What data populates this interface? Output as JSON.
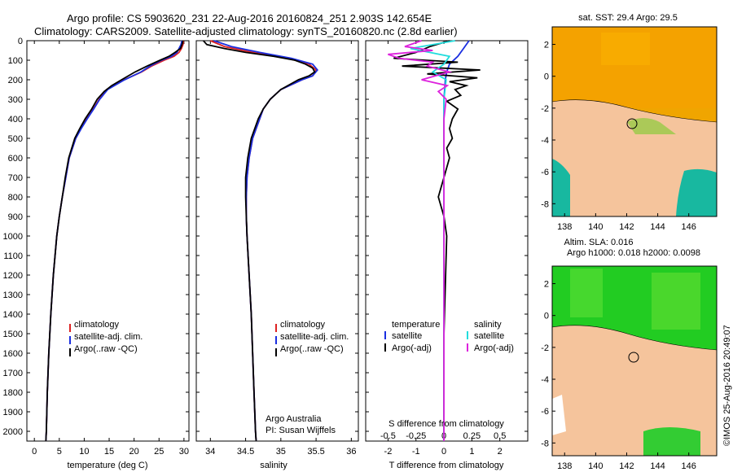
{
  "header": {
    "line1": "Argo profile: CS 5903620_231 22-Aug-2016 20160824_251 2.903S 142.654E",
    "line2": "Climatology: CARS2009. Satellite-adjusted climatology: synTS_20160820.nc (2.8d earlier)"
  },
  "colors": {
    "climatology": "#dd2222",
    "satellite": "#1a2ee0",
    "argo": "#000000",
    "sat_sal": "#22dddd",
    "argo_sal": "#dd22dd",
    "land": "#f5c49c",
    "ocean_warm": "#f0a500"
  },
  "depth_axis": {
    "ylim": [
      0,
      2050
    ],
    "ticks": [
      "0",
      "100",
      "200",
      "300",
      "400",
      "500",
      "600",
      "700",
      "800",
      "900",
      "1000",
      "1100",
      "1200",
      "1300",
      "1400",
      "1500",
      "1600",
      "1700",
      "1800",
      "1900",
      "2000"
    ]
  },
  "chart_data": [
    {
      "type": "line",
      "id": "temperature",
      "xlabel": "temperature (deg C)",
      "xlim": [
        -1.5,
        31
      ],
      "xticks": [
        "0",
        "5",
        "10",
        "15",
        "20",
        "25",
        "30"
      ],
      "legend": [
        "climatology",
        "satellite-adj. clim.",
        "Argo(..raw -QC)"
      ],
      "series": [
        {
          "name": "climatology",
          "depth": [
            0,
            20,
            40,
            60,
            80,
            100,
            130,
            160,
            200,
            250,
            300,
            350,
            400,
            450,
            500,
            600,
            700,
            800,
            900,
            1000,
            1200,
            1400,
            1600,
            1800,
            2000,
            2050
          ],
          "values": [
            29.9,
            29.8,
            29.5,
            29.0,
            28.0,
            26.0,
            23.5,
            21.5,
            18.0,
            14.5,
            13.0,
            11.8,
            10.5,
            9.3,
            8.3,
            7.0,
            6.3,
            5.6,
            5.0,
            4.5,
            3.8,
            3.3,
            2.9,
            2.6,
            2.4,
            2.3
          ]
        },
        {
          "name": "satellite-adj. clim.",
          "depth": [
            0,
            20,
            40,
            60,
            80,
            100,
            130,
            160,
            200,
            250,
            300,
            350,
            400,
            450,
            500,
            600,
            700,
            800,
            900,
            1000,
            1200,
            1400,
            1600,
            1800,
            2000,
            2050
          ],
          "values": [
            29.6,
            29.4,
            29.0,
            28.6,
            27.5,
            25.5,
            23.2,
            21.4,
            18.1,
            14.7,
            13.1,
            11.9,
            10.6,
            9.4,
            8.3,
            7.0,
            6.3,
            5.6,
            5.0,
            4.5,
            3.8,
            3.3,
            2.9,
            2.6,
            2.4,
            2.3
          ]
        },
        {
          "name": "Argo(..raw -QC)",
          "depth": [
            0,
            20,
            40,
            60,
            80,
            100,
            130,
            160,
            200,
            230,
            260,
            300,
            350,
            400,
            450,
            500,
            600,
            700,
            800,
            900,
            1000,
            1200,
            1400,
            1600,
            1800,
            2000,
            2050
          ],
          "values": [
            29.8,
            29.6,
            29.3,
            28.2,
            27.0,
            25.2,
            22.6,
            20.2,
            17.5,
            15.5,
            14.0,
            12.6,
            11.5,
            10.2,
            9.1,
            8.1,
            6.9,
            6.2,
            5.6,
            5.0,
            4.5,
            3.8,
            3.3,
            2.9,
            2.6,
            2.4,
            2.3
          ]
        }
      ]
    },
    {
      "type": "line",
      "id": "salinity",
      "xlabel": "salinity",
      "xlim": [
        33.8,
        36.1
      ],
      "xticks": [
        "34",
        "34.5",
        "35",
        "35.5",
        "36"
      ],
      "legend": [
        "climatology",
        "satellite-adj. clim.",
        "Argo(..raw -QC)"
      ],
      "annotation": [
        "Argo Australia",
        "PI: Susan Wijffels"
      ],
      "series": [
        {
          "name": "climatology",
          "depth": [
            0,
            30,
            60,
            90,
            120,
            150,
            180,
            200,
            250,
            300,
            350,
            400,
            500,
            600,
            700,
            800,
            900,
            1000,
            1200,
            1400,
            1600,
            1800,
            2000,
            2050
          ],
          "values": [
            34.0,
            34.2,
            34.6,
            35.1,
            35.4,
            35.5,
            35.45,
            35.3,
            35.0,
            34.85,
            34.75,
            34.7,
            34.6,
            34.55,
            34.52,
            34.51,
            34.51,
            34.52,
            34.55,
            34.58,
            34.6,
            34.62,
            34.64,
            34.65
          ]
        },
        {
          "name": "satellite-adj. clim.",
          "depth": [
            0,
            30,
            60,
            90,
            120,
            150,
            180,
            200,
            250,
            300,
            350,
            400,
            500,
            600,
            700,
            800,
            900,
            1000,
            1200,
            1400,
            1600,
            1800,
            2000,
            2050
          ],
          "values": [
            34.05,
            34.3,
            34.7,
            35.15,
            35.45,
            35.52,
            35.45,
            35.3,
            35.0,
            34.85,
            34.75,
            34.7,
            34.6,
            34.55,
            34.52,
            34.51,
            34.51,
            34.52,
            34.55,
            34.58,
            34.6,
            34.62,
            34.64,
            34.65
          ]
        },
        {
          "name": "Argo(..raw -QC)",
          "depth": [
            0,
            20,
            40,
            60,
            80,
            100,
            120,
            140,
            160,
            180,
            200,
            250,
            300,
            350,
            400,
            500,
            600,
            700,
            800,
            900,
            1000,
            1200,
            1400,
            1600,
            1800,
            2000,
            2050
          ],
          "values": [
            33.9,
            33.95,
            34.2,
            34.5,
            34.9,
            35.2,
            35.35,
            35.45,
            35.48,
            35.4,
            35.25,
            35.0,
            34.85,
            34.75,
            34.68,
            34.58,
            34.53,
            34.5,
            34.5,
            34.51,
            34.52,
            34.55,
            34.58,
            34.6,
            34.62,
            34.64,
            34.65
          ]
        }
      ]
    },
    {
      "type": "line",
      "id": "difference",
      "xlabel": "T difference from climatology",
      "xlabel_top": "S difference from climatology",
      "xlim": [
        -2.8,
        3.0
      ],
      "xticks": [
        "-2",
        "-1",
        "0",
        "1",
        "2"
      ],
      "s_ticks": [
        "-0.5",
        "-0.25",
        "0",
        "0.25",
        "0.5"
      ],
      "legend_titles": [
        "temperature",
        "salinity"
      ],
      "legend": [
        "satellite",
        "Argo(-adj)",
        "satellite",
        "Argo(-adj)"
      ],
      "series": [
        {
          "name": "T satellite",
          "depth": [
            0,
            40,
            80,
            120,
            160,
            200,
            300,
            500,
            800,
            1200,
            2000,
            2050
          ],
          "values": [
            0.9,
            0.7,
            0.5,
            0.2,
            0.1,
            0.05,
            0.0,
            0.0,
            0.0,
            0.0,
            0.0,
            0.0
          ]
        },
        {
          "name": "T Argo(-adj)",
          "depth": [
            0,
            30,
            60,
            90,
            110,
            130,
            150,
            170,
            190,
            210,
            230,
            250,
            280,
            310,
            350,
            400,
            450,
            500,
            550,
            600,
            700,
            800,
            900,
            1000,
            1500,
            2000,
            2050
          ],
          "values": [
            0.2,
            -0.5,
            -1.0,
            -1.8,
            0.5,
            -1.5,
            1.3,
            -0.6,
            1.2,
            0.2,
            0.8,
            0.4,
            0.6,
            0.1,
            0.5,
            0.3,
            0.2,
            0.3,
            0.1,
            0.2,
            0.0,
            -0.2,
            0.0,
            0.1,
            0.0,
            0.0,
            0.0
          ]
        },
        {
          "name": "S satellite",
          "depth": [
            0,
            40,
            80,
            120,
            160,
            200,
            300,
            500,
            800,
            1200,
            2000,
            2050
          ],
          "values": [
            0.1,
            -0.3,
            0.05,
            0.0,
            -0.1,
            0.02,
            0.0,
            0.0,
            0.0,
            0.0,
            0.0,
            0.0
          ]
        },
        {
          "name": "S Argo(-adj)",
          "depth": [
            0,
            30,
            50,
            70,
            90,
            110,
            130,
            160,
            200,
            230,
            260,
            300,
            400,
            500,
            700,
            900,
            2000,
            2050
          ],
          "values": [
            -0.2,
            -0.35,
            -0.1,
            -0.5,
            -0.4,
            -0.1,
            -0.15,
            0.05,
            -0.2,
            0.03,
            -0.05,
            0.02,
            0.0,
            0.0,
            0.0,
            0.0,
            0.0,
            0.0
          ]
        }
      ]
    }
  ],
  "maps": {
    "sst": {
      "title": "sat. SST: 29.4 Argo: 29.5",
      "x_ticks": [
        "138",
        "140",
        "142",
        "144",
        "146"
      ],
      "y_ticks": [
        "2",
        "0",
        "-2",
        "-4",
        "-6",
        "-8"
      ]
    },
    "sla": {
      "title1": "Altim. SLA: 0.016",
      "title2": "Argo h1000: 0.018 h2000: 0.0098",
      "x_ticks": [
        "138",
        "140",
        "142",
        "144",
        "146"
      ],
      "y_ticks": [
        "2",
        "0",
        "-2",
        "-4",
        "-6",
        "-8"
      ]
    }
  },
  "stamp": "©IMOS 25-Aug-2016 20:49:07"
}
